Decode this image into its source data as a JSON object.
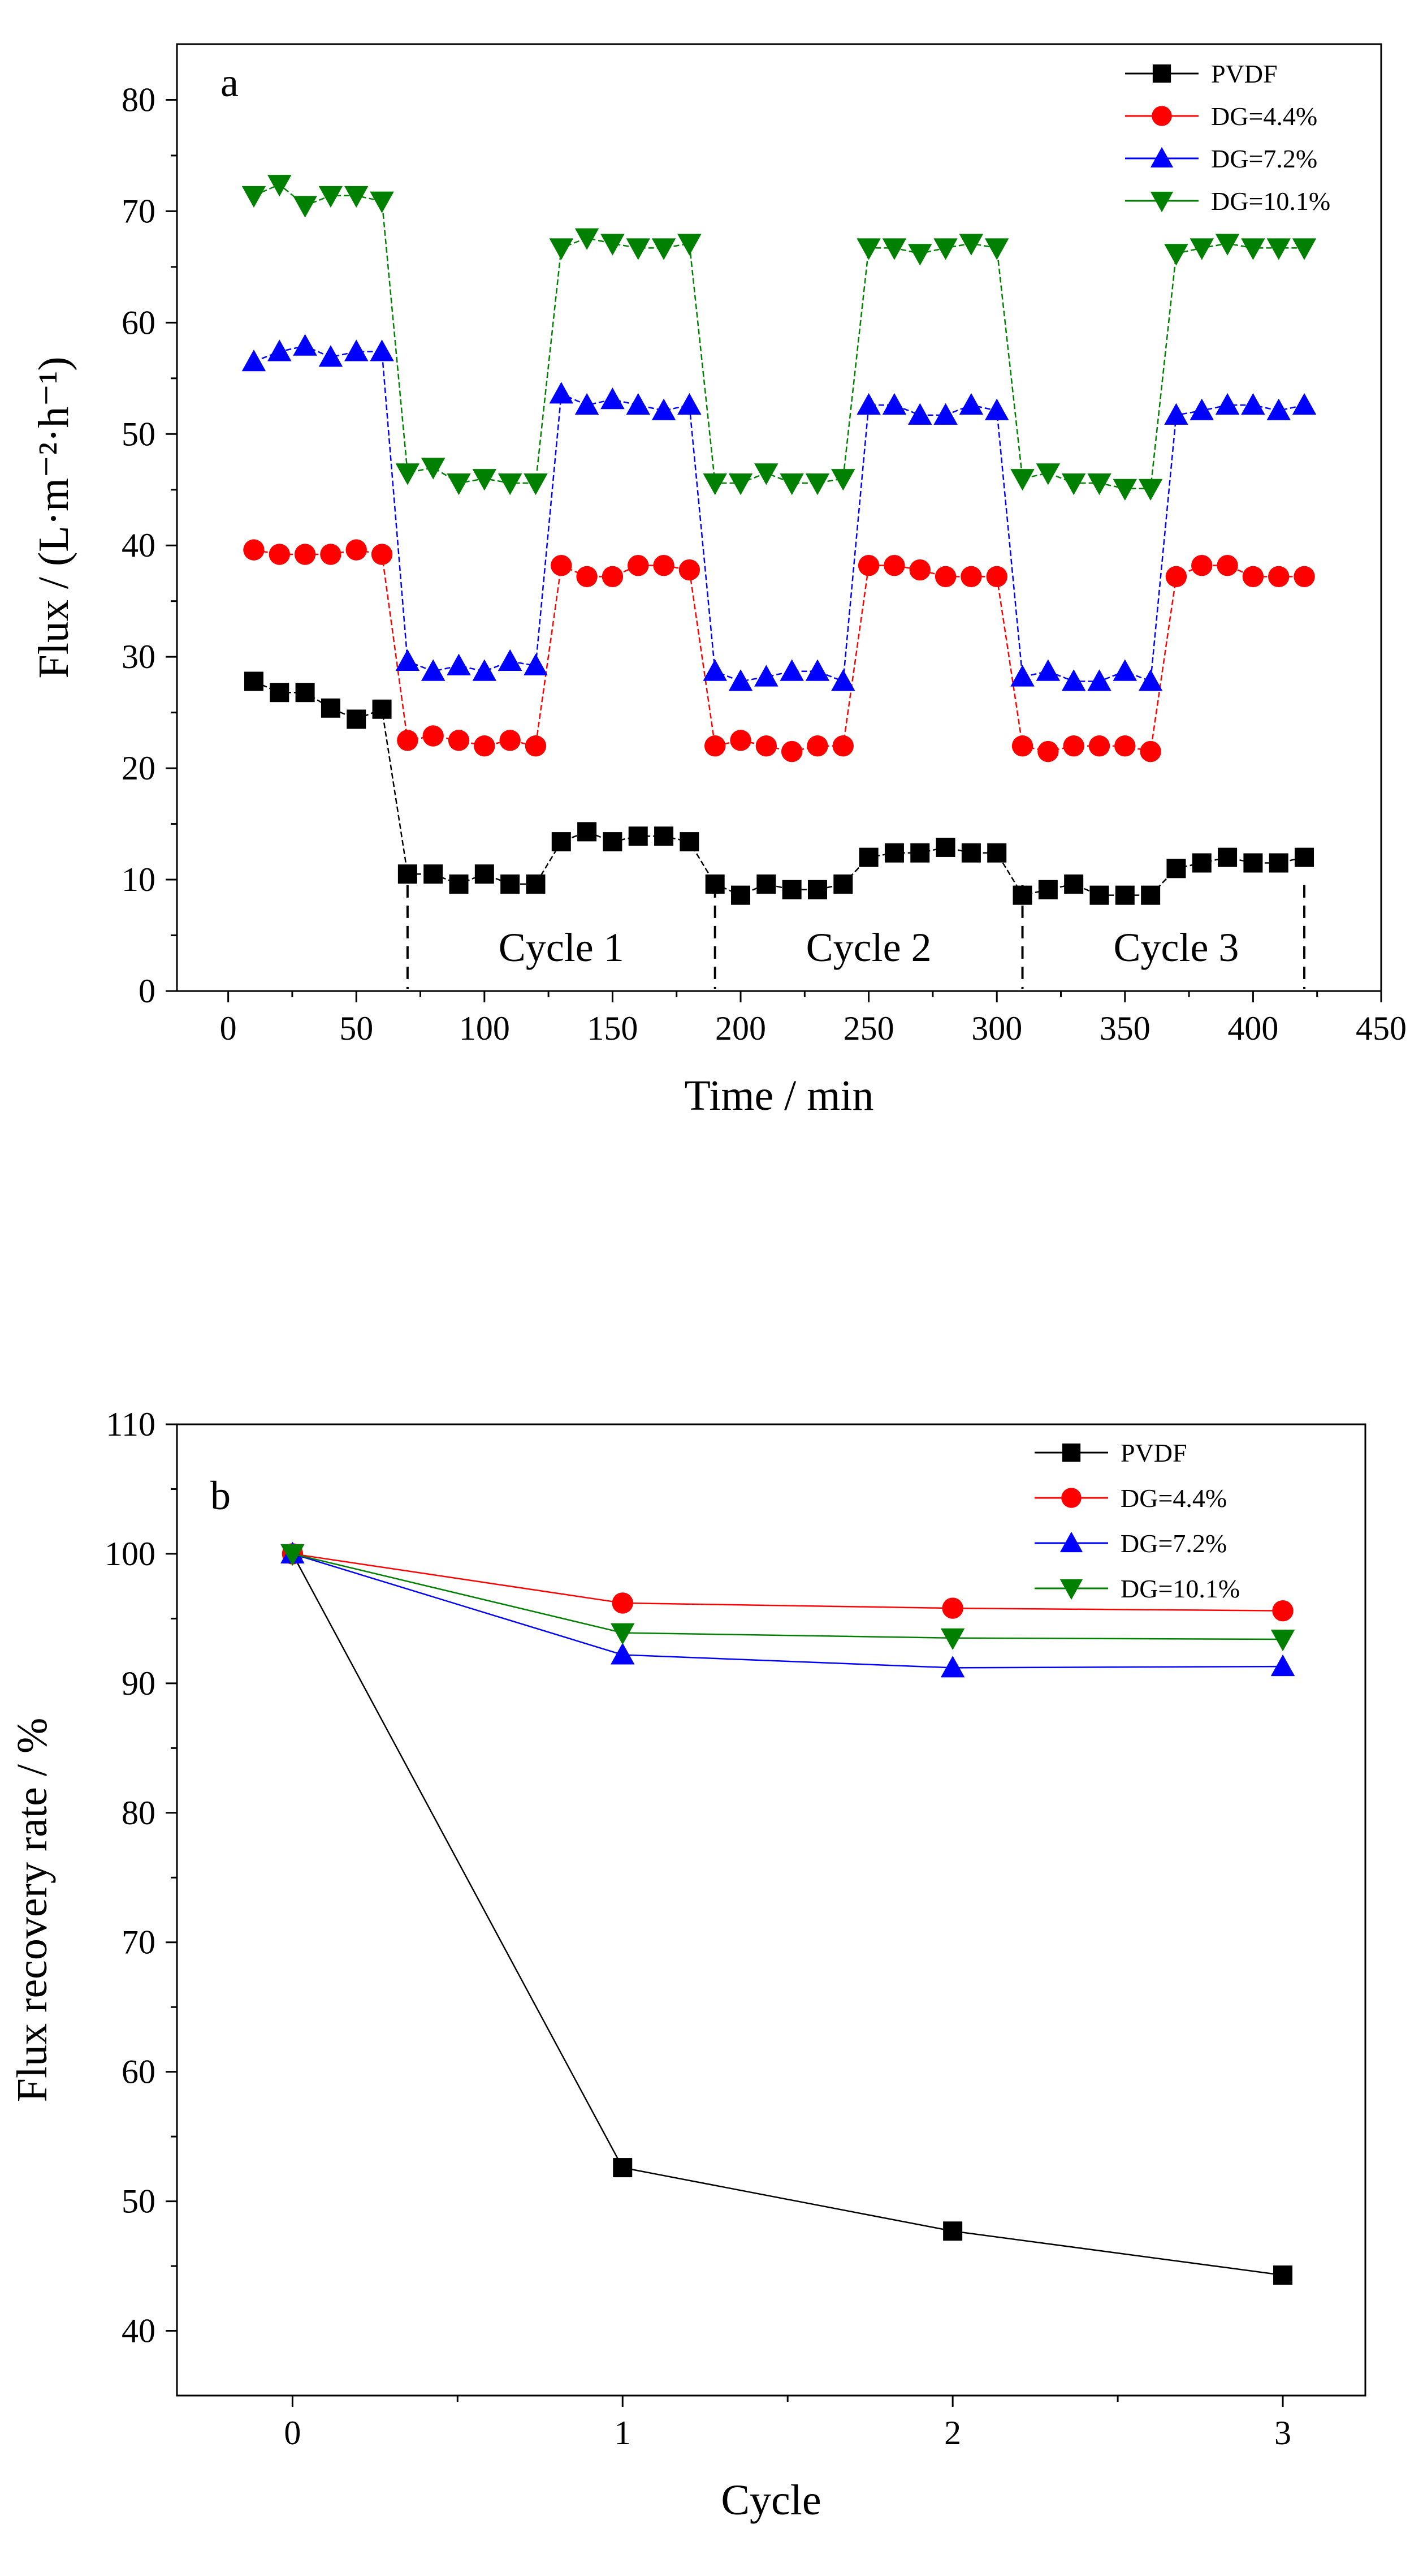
{
  "colors": {
    "PVDF": "#000000",
    "DG=4.4%": "#ff0000",
    "DG=7.2%": "#0000ff",
    "DG=10.1%": "#008000"
  },
  "chart_data": [
    {
      "type": "line",
      "panel_label": "a",
      "title": "",
      "xlabel": "Time / min",
      "ylabel": "Flux / (L·m⁻²·h⁻¹)",
      "xlim": [
        -20,
        450
      ],
      "ylim": [
        0,
        85
      ],
      "xticks": [
        0,
        50,
        100,
        150,
        200,
        250,
        300,
        350,
        400,
        450
      ],
      "yticks": [
        0,
        10,
        20,
        30,
        40,
        50,
        60,
        70,
        80
      ],
      "legend_position": "top-right",
      "annotations": [
        {
          "text": "Cycle 1",
          "x": 130
        },
        {
          "text": "Cycle 2",
          "x": 250
        },
        {
          "text": "Cycle 3",
          "x": 370
        }
      ],
      "cycle_dividers_x": [
        70,
        190,
        310,
        420
      ],
      "x": [
        10,
        20,
        30,
        40,
        50,
        60,
        70,
        80,
        90,
        100,
        110,
        120,
        130,
        140,
        150,
        160,
        170,
        180,
        190,
        200,
        210,
        220,
        230,
        240,
        250,
        260,
        270,
        280,
        290,
        300,
        310,
        320,
        330,
        340,
        350,
        360,
        370,
        380,
        390,
        400,
        410,
        420
      ],
      "series": [
        {
          "name": "PVDF",
          "marker": "square",
          "values": [
            27.8,
            26.8,
            26.8,
            25.4,
            24.4,
            25.3,
            10.5,
            10.5,
            9.6,
            10.5,
            9.6,
            9.6,
            13.4,
            14.3,
            13.4,
            13.9,
            13.9,
            13.4,
            9.6,
            8.6,
            9.6,
            9.1,
            9.1,
            9.6,
            12.0,
            12.4,
            12.4,
            12.9,
            12.4,
            12.4,
            8.6,
            9.1,
            9.6,
            8.6,
            8.6,
            8.6,
            11.0,
            11.5,
            12.0,
            11.5,
            11.5,
            12.0
          ]
        },
        {
          "name": "DG=4.4%",
          "marker": "circle",
          "values": [
            39.6,
            39.2,
            39.2,
            39.2,
            39.6,
            39.2,
            22.5,
            22.9,
            22.5,
            22.0,
            22.5,
            22.0,
            38.2,
            37.2,
            37.2,
            38.2,
            38.2,
            37.8,
            22.0,
            22.5,
            22.0,
            21.5,
            22.0,
            22.0,
            38.2,
            38.2,
            37.8,
            37.2,
            37.2,
            37.2,
            22.0,
            21.5,
            22.0,
            22.0,
            22.0,
            21.5,
            37.2,
            38.2,
            38.2,
            37.2,
            37.2,
            37.2
          ]
        },
        {
          "name": "DG=7.2%",
          "marker": "triangle-up",
          "values": [
            56.5,
            57.4,
            57.9,
            56.9,
            57.4,
            57.4,
            29.6,
            28.7,
            29.2,
            28.7,
            29.6,
            29.2,
            53.6,
            52.6,
            53.1,
            52.6,
            52.1,
            52.6,
            28.7,
            27.8,
            28.2,
            28.7,
            28.7,
            27.8,
            52.6,
            52.6,
            51.7,
            51.7,
            52.6,
            52.1,
            28.2,
            28.7,
            27.8,
            27.8,
            28.7,
            27.8,
            51.7,
            52.1,
            52.6,
            52.6,
            52.1,
            52.6
          ]
        },
        {
          "name": "DG=10.1%",
          "marker": "triangle-down",
          "values": [
            71.4,
            72.4,
            70.5,
            71.4,
            71.4,
            70.9,
            46.5,
            47.0,
            45.6,
            46.0,
            45.6,
            45.6,
            66.7,
            67.6,
            67.1,
            66.7,
            66.7,
            67.1,
            45.6,
            45.6,
            46.5,
            45.6,
            45.6,
            46.0,
            66.7,
            66.7,
            66.2,
            66.7,
            67.1,
            66.7,
            46.0,
            46.5,
            45.6,
            45.6,
            45.1,
            45.1,
            66.2,
            66.7,
            67.1,
            66.7,
            66.7,
            66.7
          ]
        }
      ]
    },
    {
      "type": "line",
      "panel_label": "b",
      "title": "",
      "xlabel": "Cycle",
      "ylabel": "Flux recovery rate / %",
      "xlim": [
        -0.35,
        3.25
      ],
      "ylim": [
        35,
        110
      ],
      "xticks": [
        0,
        1,
        2,
        3
      ],
      "yticks": [
        40,
        50,
        60,
        70,
        80,
        90,
        100,
        110
      ],
      "legend_position": "top-right",
      "x": [
        0,
        1,
        2,
        3
      ],
      "series": [
        {
          "name": "PVDF",
          "marker": "square",
          "values": [
            100,
            52.6,
            47.7,
            44.3
          ]
        },
        {
          "name": "DG=4.4%",
          "marker": "circle",
          "values": [
            100,
            96.2,
            95.8,
            95.6
          ]
        },
        {
          "name": "DG=7.2%",
          "marker": "triangle-up",
          "values": [
            100,
            92.2,
            91.2,
            91.3
          ]
        },
        {
          "name": "DG=10.1%",
          "marker": "triangle-down",
          "values": [
            100,
            93.9,
            93.5,
            93.4
          ]
        }
      ]
    }
  ]
}
